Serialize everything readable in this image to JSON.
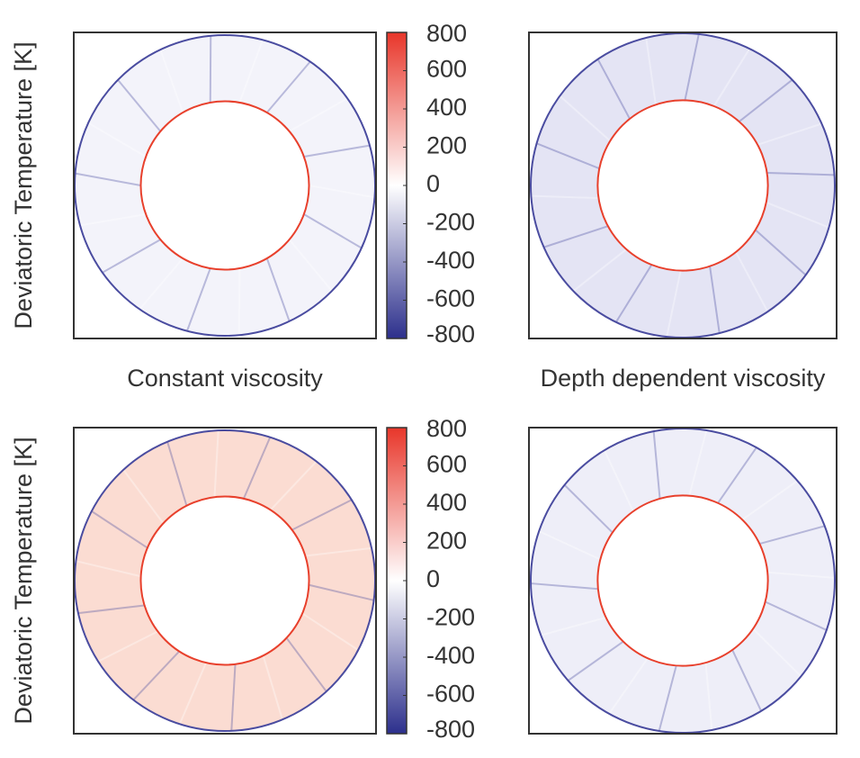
{
  "chart_data": [
    {
      "type": "annulus",
      "title": "Constant viscosity",
      "fill": "#f3f3fa",
      "edge": "#4a4ca0",
      "core_edge": "#e8402c",
      "colorbar": {
        "label": "Deviatoric Temperature [K]",
        "lim": [
          -800,
          800
        ],
        "ticks": [
          800,
          600,
          400,
          200,
          0,
          -200,
          -400,
          -600,
          -800
        ],
        "colors": [
          "#2c2f8c",
          "#ffffff",
          "#e8362a"
        ]
      }
    },
    {
      "type": "annulus",
      "title": "Depth dependent viscosity",
      "fill": "#e4e4f4",
      "edge": "#4a4ca0",
      "core_edge": "#e8402c"
    },
    {
      "type": "annulus",
      "fill": "#fbdcd2",
      "edge": "#4a4ca0",
      "core_edge": "#e8402c",
      "colorbar": {
        "label": "Deviatoric Temperature [K]",
        "lim": [
          -800,
          800
        ],
        "ticks": [
          800,
          600,
          400,
          200,
          0,
          -200,
          -400,
          -600,
          -800
        ],
        "colors": [
          "#2c2f8c",
          "#ffffff",
          "#e8362a"
        ]
      }
    },
    {
      "type": "annulus",
      "fill": "#eeeef8",
      "edge": "#4a4ca0",
      "core_edge": "#e8402c"
    }
  ]
}
